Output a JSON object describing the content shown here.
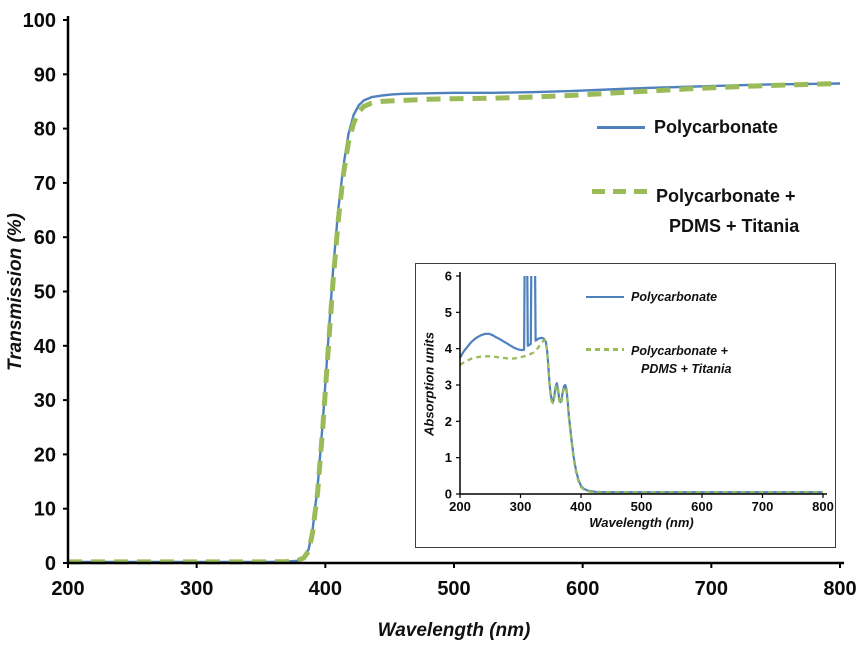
{
  "figure": {
    "background": "#ffffff"
  },
  "colors": {
    "polycarbonate_blue": "#4f81bd",
    "composite_green": "#9bbb59",
    "axis_black": "#000000"
  },
  "legend_main": {
    "entry1": "Polycarbonate",
    "entry2_line1": "Polycarbonate +",
    "entry2_line2": "PDMS + Titania"
  },
  "legend_inset": {
    "entry1": "Polycarbonate",
    "entry2_line1": "Polycarbonate +",
    "entry2_line2": "PDMS + Titania"
  },
  "chart_data": [
    {
      "id": "main",
      "type": "line",
      "title": "",
      "xlabel": "Wavelength (nm)",
      "ylabel": "Transmission (%)",
      "xlim": [
        200,
        800
      ],
      "ylim": [
        0,
        100
      ],
      "x_ticks": [
        200,
        300,
        400,
        500,
        600,
        700,
        800
      ],
      "y_ticks": [
        0,
        10,
        20,
        30,
        40,
        50,
        60,
        70,
        80,
        90,
        100
      ],
      "grid": false,
      "legend_position": "inside-upper-right",
      "series": [
        {
          "name": "Polycarbonate",
          "slug": "polycarbonate",
          "color": "#4f81bd",
          "style": "solid",
          "width": 2.4,
          "points": [
            [
              200,
              0.2
            ],
            [
              240,
              0.2
            ],
            [
              280,
              0.2
            ],
            [
              320,
              0.2
            ],
            [
              355,
              0.2
            ],
            [
              370,
              0.25
            ],
            [
              378,
              0.4
            ],
            [
              383,
              1
            ],
            [
              387,
              2.5
            ],
            [
              390,
              6
            ],
            [
              394,
              14
            ],
            [
              398,
              26
            ],
            [
              402,
              40
            ],
            [
              406,
              54
            ],
            [
              410,
              65
            ],
            [
              414,
              73
            ],
            [
              418,
              79
            ],
            [
              422,
              82.5
            ],
            [
              426,
              84.3
            ],
            [
              430,
              85.2
            ],
            [
              436,
              85.8
            ],
            [
              444,
              86.1
            ],
            [
              452,
              86.3
            ],
            [
              460,
              86.4
            ],
            [
              480,
              86.5
            ],
            [
              500,
              86.6
            ],
            [
              530,
              86.6
            ],
            [
              560,
              86.7
            ],
            [
              590,
              86.9
            ],
            [
              620,
              87.2
            ],
            [
              650,
              87.5
            ],
            [
              680,
              87.7
            ],
            [
              710,
              87.9
            ],
            [
              740,
              88.1
            ],
            [
              770,
              88.2
            ],
            [
              800,
              88.3
            ]
          ]
        },
        {
          "name": "Polycarbonate + PDMS + Titania",
          "slug": "polycarbonate-pdms-titania",
          "color": "#9bbb59",
          "style": "dashed",
          "dash": "14 9",
          "width": 5,
          "points": [
            [
              200,
              0.2
            ],
            [
              240,
              0.2
            ],
            [
              280,
              0.2
            ],
            [
              320,
              0.2
            ],
            [
              355,
              0.2
            ],
            [
              370,
              0.25
            ],
            [
              378,
              0.4
            ],
            [
              383,
              0.9
            ],
            [
              387,
              2.2
            ],
            [
              390,
              5.5
            ],
            [
              394,
              13
            ],
            [
              398,
              25
            ],
            [
              402,
              38.5
            ],
            [
              406,
              52
            ],
            [
              410,
              63
            ],
            [
              414,
              71.5
            ],
            [
              418,
              77.5
            ],
            [
              422,
              81
            ],
            [
              426,
              83.1
            ],
            [
              430,
              84.1
            ],
            [
              436,
              84.7
            ],
            [
              444,
              85
            ],
            [
              452,
              85.1
            ],
            [
              460,
              85.2
            ],
            [
              480,
              85.4
            ],
            [
              500,
              85.5
            ],
            [
              530,
              85.6
            ],
            [
              560,
              85.8
            ],
            [
              590,
              86.1
            ],
            [
              620,
              86.5
            ],
            [
              650,
              86.9
            ],
            [
              680,
              87.3
            ],
            [
              710,
              87.6
            ],
            [
              740,
              87.9
            ],
            [
              770,
              88.1
            ],
            [
              800,
              88.3
            ]
          ]
        }
      ]
    },
    {
      "id": "inset",
      "type": "line",
      "title": "",
      "xlabel": "Wavelength (nm)",
      "ylabel": "Absorption units",
      "xlim": [
        200,
        800
      ],
      "ylim": [
        0,
        6
      ],
      "x_ticks": [
        200,
        300,
        400,
        500,
        600,
        700,
        800
      ],
      "y_ticks": [
        0,
        1,
        2,
        3,
        4,
        5,
        6
      ],
      "grid": false,
      "legend_position": "inside-upper-right",
      "series": [
        {
          "name": "Polycarbonate",
          "slug": "polycarbonate-absorption",
          "color": "#4f81bd",
          "style": "solid",
          "width": 2.2,
          "points": [
            [
              200,
              3.75
            ],
            [
              206,
              3.92
            ],
            [
              212,
              4.05
            ],
            [
              218,
              4.17
            ],
            [
              224,
              4.26
            ],
            [
              230,
              4.33
            ],
            [
              236,
              4.38
            ],
            [
              242,
              4.41
            ],
            [
              248,
              4.41
            ],
            [
              254,
              4.37
            ],
            [
              260,
              4.31
            ],
            [
              266,
              4.26
            ],
            [
              272,
              4.2
            ],
            [
              278,
              4.14
            ],
            [
              284,
              4.08
            ],
            [
              290,
              4.02
            ],
            [
              296,
              3.98
            ],
            [
              302,
              3.96
            ],
            [
              306,
              3.97
            ],
            [
              307,
              6.5
            ],
            [
              311,
              6.5
            ],
            [
              312,
              4.08
            ],
            [
              317,
              4.13
            ],
            [
              318,
              6.5
            ],
            [
              324,
              6.5
            ],
            [
              325,
              4.22
            ],
            [
              330,
              4.28
            ],
            [
              335,
              4.3
            ],
            [
              339,
              4.27
            ],
            [
              342,
              4.18
            ],
            [
              344,
              3.95
            ],
            [
              346,
              3.55
            ],
            [
              348,
              3.05
            ],
            [
              350,
              2.72
            ],
            [
              352,
              2.58
            ],
            [
              354,
              2.55
            ],
            [
              356,
              2.72
            ],
            [
              358,
              2.95
            ],
            [
              360,
              3.05
            ],
            [
              362,
              2.88
            ],
            [
              364,
              2.62
            ],
            [
              366,
              2.53
            ],
            [
              368,
              2.6
            ],
            [
              370,
              2.82
            ],
            [
              372,
              2.97
            ],
            [
              374,
              3.0
            ],
            [
              376,
              2.88
            ],
            [
              378,
              2.55
            ],
            [
              380,
              2.15
            ],
            [
              382,
              1.85
            ],
            [
              384,
              1.55
            ],
            [
              386,
              1.28
            ],
            [
              388,
              1.02
            ],
            [
              390,
              0.82
            ],
            [
              392,
              0.63
            ],
            [
              394,
              0.5
            ],
            [
              396,
              0.38
            ],
            [
              398,
              0.3
            ],
            [
              400,
              0.22
            ],
            [
              405,
              0.14
            ],
            [
              410,
              0.1
            ],
            [
              416,
              0.08
            ],
            [
              424,
              0.06
            ],
            [
              440,
              0.05
            ],
            [
              470,
              0.05
            ],
            [
              500,
              0.05
            ],
            [
              550,
              0.05
            ],
            [
              600,
              0.05
            ],
            [
              650,
              0.05
            ],
            [
              700,
              0.05
            ],
            [
              750,
              0.05
            ],
            [
              800,
              0.05
            ]
          ]
        },
        {
          "name": "Polycarbonate + PDMS + Titania",
          "slug": "polycarbonate-pdms-titania-absorption",
          "color": "#9bbb59",
          "style": "dashed",
          "dash": "5 4",
          "width": 2.3,
          "points": [
            [
              200,
              3.55
            ],
            [
              210,
              3.66
            ],
            [
              220,
              3.73
            ],
            [
              230,
              3.77
            ],
            [
              240,
              3.79
            ],
            [
              250,
              3.79
            ],
            [
              260,
              3.77
            ],
            [
              270,
              3.75
            ],
            [
              280,
              3.73
            ],
            [
              290,
              3.73
            ],
            [
              300,
              3.76
            ],
            [
              308,
              3.8
            ],
            [
              316,
              3.85
            ],
            [
              322,
              3.9
            ],
            [
              328,
              4.0
            ],
            [
              333,
              4.12
            ],
            [
              337,
              4.2
            ],
            [
              340,
              4.24
            ],
            [
              342,
              4.17
            ],
            [
              344,
              3.92
            ],
            [
              346,
              3.5
            ],
            [
              348,
              3.0
            ],
            [
              350,
              2.67
            ],
            [
              352,
              2.53
            ],
            [
              354,
              2.5
            ],
            [
              356,
              2.67
            ],
            [
              358,
              2.9
            ],
            [
              360,
              3.0
            ],
            [
              362,
              2.83
            ],
            [
              364,
              2.57
            ],
            [
              366,
              2.48
            ],
            [
              368,
              2.55
            ],
            [
              370,
              2.77
            ],
            [
              372,
              2.92
            ],
            [
              374,
              2.95
            ],
            [
              376,
              2.83
            ],
            [
              378,
              2.5
            ],
            [
              380,
              2.1
            ],
            [
              382,
              1.8
            ],
            [
              384,
              1.5
            ],
            [
              386,
              1.23
            ],
            [
              388,
              0.97
            ],
            [
              390,
              0.77
            ],
            [
              392,
              0.58
            ],
            [
              394,
              0.45
            ],
            [
              396,
              0.34
            ],
            [
              398,
              0.26
            ],
            [
              400,
              0.19
            ],
            [
              405,
              0.12
            ],
            [
              410,
              0.08
            ],
            [
              416,
              0.06
            ],
            [
              424,
              0.05
            ],
            [
              440,
              0.04
            ],
            [
              470,
              0.04
            ],
            [
              500,
              0.04
            ],
            [
              550,
              0.04
            ],
            [
              600,
              0.04
            ],
            [
              650,
              0.04
            ],
            [
              700,
              0.04
            ],
            [
              750,
              0.04
            ],
            [
              800,
              0.04
            ]
          ]
        }
      ]
    }
  ]
}
